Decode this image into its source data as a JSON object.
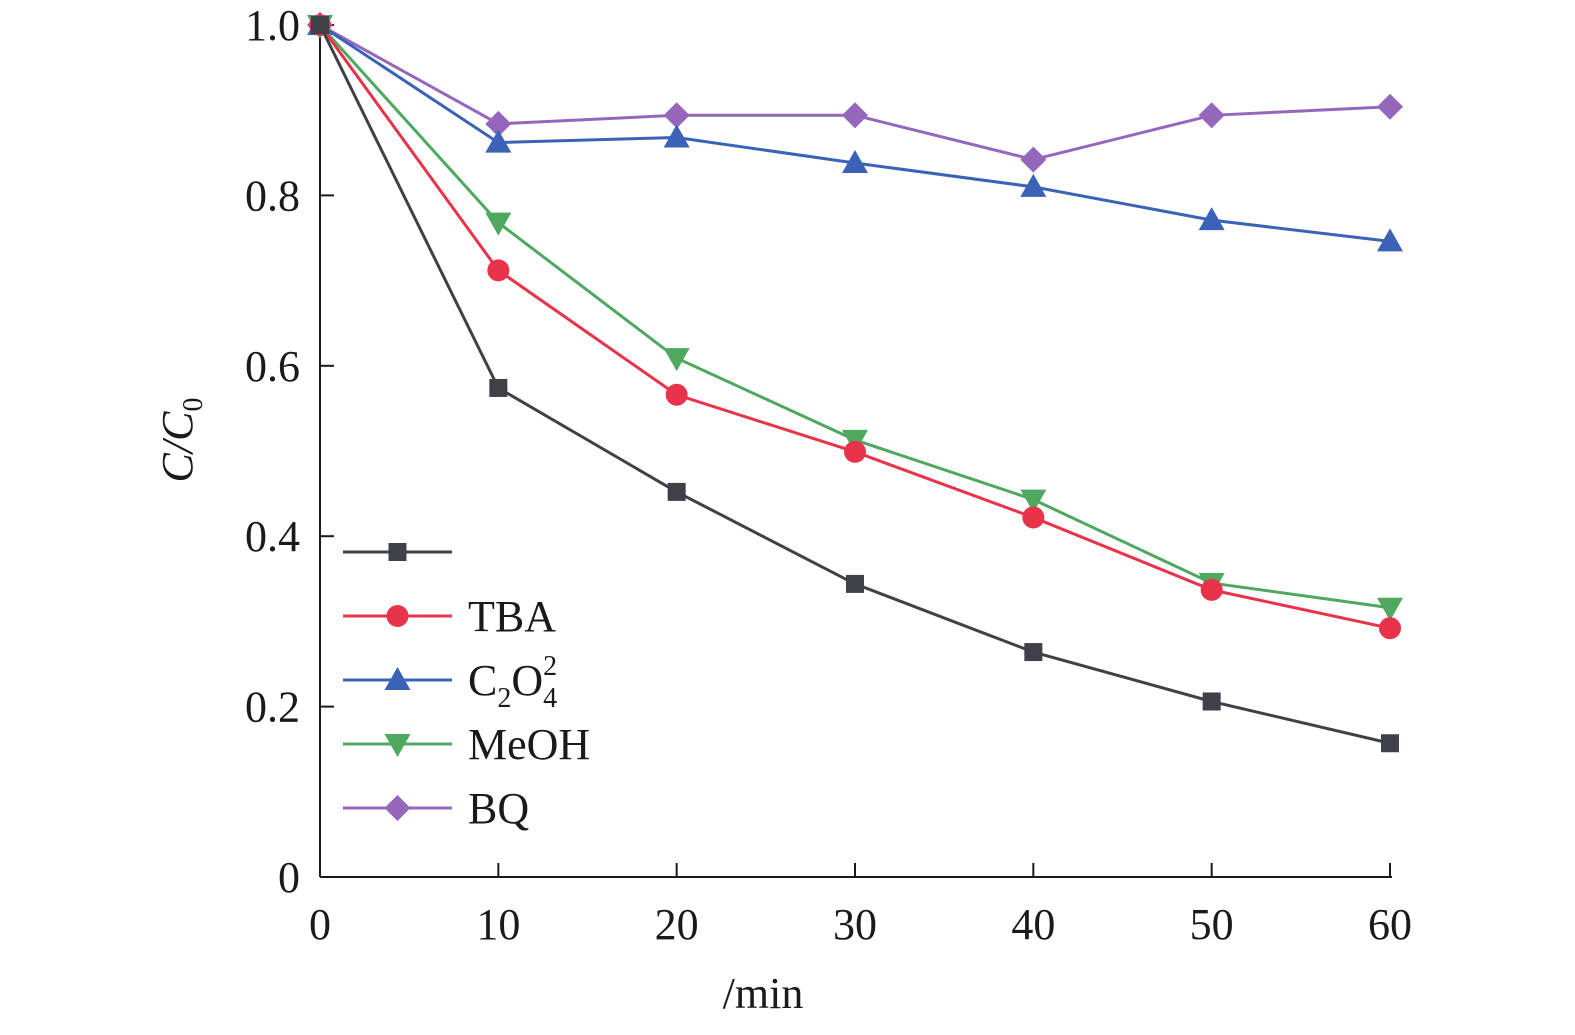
{
  "chart_data": {
    "type": "line",
    "x": [
      0,
      10,
      20,
      30,
      40,
      50,
      60
    ],
    "xlabel": "/min",
    "ylabel_main": "C/C",
    "ylabel_sub": "0",
    "xlim": [
      0,
      60
    ],
    "ylim": [
      0,
      1.0
    ],
    "x_ticks": [
      0,
      10,
      20,
      30,
      40,
      50,
      60
    ],
    "y_ticks": [
      0,
      0.2,
      0.4,
      0.6,
      0.8,
      1.0
    ],
    "y_tick_labels": [
      "0",
      "0.2",
      "0.4",
      "0.6",
      "0.8",
      "1.0"
    ],
    "grid": false,
    "legend_position": "bottom-left",
    "series": [
      {
        "key": "control",
        "name": "",
        "color": "#404048",
        "marker": "square",
        "values": [
          1.0,
          0.574,
          0.452,
          0.344,
          0.264,
          0.206,
          0.157
        ]
      },
      {
        "key": "tba",
        "name": "TBA",
        "color": "#e8334a",
        "marker": "circle",
        "values": [
          1.0,
          0.712,
          0.566,
          0.499,
          0.422,
          0.337,
          0.292
        ]
      },
      {
        "key": "oxalate",
        "name": "C2O42",
        "color": "#3a63b8",
        "marker": "triangle-up",
        "label_parts": {
          "main1": "C",
          "sub1": "2",
          "main2": "O",
          "sub2": "4",
          "sup2": "2"
        },
        "values": [
          1.0,
          0.862,
          0.868,
          0.838,
          0.81,
          0.771,
          0.746
        ]
      },
      {
        "key": "meoh",
        "name": "MeOH",
        "color": "#4ea860",
        "marker": "triangle-down",
        "values": [
          1.0,
          0.768,
          0.609,
          0.513,
          0.443,
          0.345,
          0.316
        ]
      },
      {
        "key": "bq",
        "name": "BQ",
        "color": "#9467bd",
        "marker": "diamond",
        "values": [
          1.0,
          0.884,
          0.894,
          0.894,
          0.842,
          0.894,
          0.904
        ]
      }
    ]
  }
}
